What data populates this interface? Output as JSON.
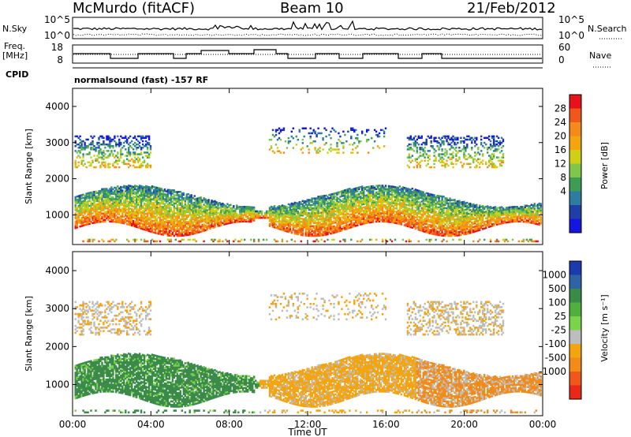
{
  "header": {
    "station": "McMurdo (fitACF)",
    "beam": "Beam 10",
    "date": "21/Feb/2012"
  },
  "strip_panels": {
    "nsky_label": "N.Sky",
    "nsky_ticks": [
      "10^5",
      "10^0"
    ],
    "nsearch_label": "N.Search",
    "nsearch_ticks": [
      "10^5",
      "10^0"
    ],
    "freq_label": "Freq.",
    "freq_unit": "[MHz]",
    "freq_ticks": [
      "18",
      "8"
    ],
    "nave_label": "Nave",
    "nave_ticks": [
      "60",
      "0"
    ],
    "cpid_label": "CPID",
    "cpid_text": "normalsound (fast) -157 RF"
  },
  "chart_data": [
    {
      "type": "heatmap",
      "ylabel": "Slant Range [km]",
      "xlabel": "Time UT",
      "x_ticks": [
        "00:00",
        "04:00",
        "08:00",
        "12:00",
        "16:00",
        "20:00",
        "00:00"
      ],
      "xlim": [
        0,
        24
      ],
      "ylim": [
        180,
        4500
      ],
      "y_ticks": [
        1000,
        2000,
        3000,
        4000
      ],
      "colorbar": {
        "label": "Power [dB]",
        "ticks": [
          "28",
          "24",
          "20",
          "16",
          "12",
          "8",
          "4"
        ],
        "colors": [
          "#e8111b",
          "#f1561b",
          "#f48a17",
          "#f4a40f",
          "#cfd015",
          "#7fc74a",
          "#3f9c55",
          "#2e7ca0",
          "#1f3ea8",
          "#1515e0"
        ],
        "range": [
          0,
          32
        ]
      }
    },
    {
      "type": "heatmap",
      "ylabel": "Slant Range [km]",
      "xlabel": "Time UT",
      "x_ticks": [
        "00:00",
        "04:00",
        "08:00",
        "12:00",
        "16:00",
        "20:00",
        "00:00"
      ],
      "xlim": [
        0,
        24
      ],
      "ylim": [
        180,
        4500
      ],
      "y_ticks": [
        1000,
        2000,
        3000,
        4000
      ],
      "colorbar": {
        "label": "Velocity [m s⁻¹]",
        "ticks": [
          "1000",
          "500",
          "100",
          "25",
          "-25",
          "-100",
          "-500",
          "-1000"
        ],
        "colors": [
          "#1c3ab0",
          "#2f63a6",
          "#3b8a4a",
          "#52ae3e",
          "#7ad34a",
          "#bdbdbd",
          "#f4a40f",
          "#f48a17",
          "#f1561b",
          "#e82818"
        ],
        "range": [
          -1000,
          1000
        ]
      }
    }
  ]
}
